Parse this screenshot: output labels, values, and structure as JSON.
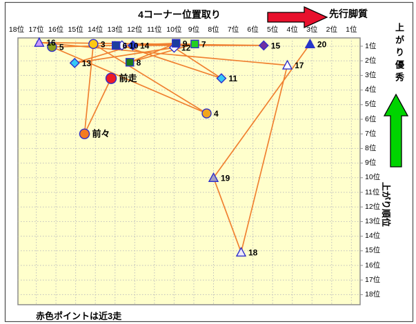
{
  "annotations": {
    "pace_arrow_label": "先行脚質",
    "agari_good_label": "上がり優秀",
    "agari_rank_label": "上がり順位",
    "note": "赤色ポイントは近3走"
  },
  "colors": {
    "plot_background": "#ffffcc",
    "plot_border": "#8a8a8a",
    "gridline": "#bdbdbd",
    "connector_line": "#f08030",
    "marker_border_blue": "#2d2dcb",
    "red_arrow": "#e8112d",
    "green_arrow": "#00d400",
    "frame_border": "#4a4a4a"
  },
  "chart_data": {
    "type": "scatter",
    "title": "4コーナー位置取り",
    "x_axis": {
      "labels": [
        "18位",
        "17位",
        "16位",
        "15位",
        "14位",
        "13位",
        "12位",
        "11位",
        "10位",
        "9位",
        "8位",
        "7位",
        "6位",
        "5位",
        "4位",
        "3位",
        "2位",
        "1位"
      ],
      "range": [
        18,
        1
      ],
      "meaning": "4コーナー位置取り"
    },
    "y_axis": {
      "labels": [
        "1位",
        "2位",
        "3位",
        "4位",
        "5位",
        "6位",
        "7位",
        "8位",
        "9位",
        "10位",
        "11位",
        "12位",
        "13位",
        "14位",
        "15位",
        "16位",
        "17位",
        "18位"
      ],
      "range": [
        1,
        18
      ],
      "meaning": "上がり順位"
    },
    "grid": true,
    "points": [
      {
        "label": "前走",
        "x": 13.2,
        "y": 3.2,
        "shape": "circle",
        "fill": "#ee1c25",
        "size": 15
      },
      {
        "label": "前々",
        "x": 14.55,
        "y": 7.0,
        "shape": "circle",
        "fill": "#f47b20",
        "size": 14
      },
      {
        "label": "3",
        "x": 14.1,
        "y": 0.85,
        "shape": "circle",
        "fill": "#ffc913",
        "size": 13
      },
      {
        "label": "4",
        "x": 8.35,
        "y": 5.6,
        "shape": "circle",
        "fill": "#f2a51c",
        "size": 13
      },
      {
        "label": "5",
        "x": 16.2,
        "y": 1.05,
        "shape": "circle",
        "fill": "#8ca11c",
        "size": 13
      },
      {
        "label": "10",
        "x": 12.65,
        "y": 0.95,
        "shape": "diamond",
        "fill": "#ffffff",
        "size": 13
      },
      {
        "label": "6",
        "x": 12.95,
        "y": 0.95,
        "shape": "square",
        "fill": "#1c3e9c",
        "size": 11
      },
      {
        "label": "14",
        "x": 12.1,
        "y": 0.95,
        "shape": "diamond",
        "fill": "#2946cc",
        "size": 13
      },
      {
        "label": "12",
        "x": 10.0,
        "y": 1.1,
        "shape": "diamond",
        "fill": "#ffffff",
        "size": 13
      },
      {
        "label": "9",
        "x": 9.9,
        "y": 0.8,
        "shape": "square",
        "fill": "#1c3e9c",
        "size": 11
      },
      {
        "label": "7",
        "x": 8.95,
        "y": 0.85,
        "shape": "square",
        "fill": "#21d021",
        "size": 11
      },
      {
        "label": "8",
        "x": 12.25,
        "y": 2.1,
        "shape": "square",
        "fill": "#1b7a1b",
        "size": 11
      },
      {
        "label": "11",
        "x": 7.6,
        "y": 3.2,
        "shape": "diamond",
        "fill": "#35c8f5",
        "size": 13
      },
      {
        "label": "13",
        "x": 15.05,
        "y": 2.15,
        "shape": "diamond",
        "fill": "#35c8f5",
        "size": 13
      },
      {
        "label": "15",
        "x": 5.45,
        "y": 0.95,
        "shape": "diamond",
        "fill": "#7030a0",
        "size": 13
      },
      {
        "label": "16",
        "x": 16.85,
        "y": 0.75,
        "shape": "triangle",
        "fill": "#cc99ff",
        "size": 13
      },
      {
        "label": "17",
        "x": 4.25,
        "y": 2.3,
        "shape": "triangle",
        "fill": "#ffffff",
        "size": 13
      },
      {
        "label": "18",
        "x": 6.6,
        "y": 15.1,
        "shape": "triangle",
        "fill": "#ece8fa",
        "size": 13
      },
      {
        "label": "19",
        "x": 8.0,
        "y": 10.0,
        "shape": "triangle",
        "fill": "#a49fc0",
        "size": 13
      },
      {
        "label": "20",
        "x": 3.1,
        "y": 0.85,
        "shape": "triangle",
        "fill": "#2238c8",
        "size": 13
      }
    ],
    "connection_order": [
      "前走",
      "前々",
      "3",
      "4",
      "5",
      "6",
      "7",
      "8",
      "9",
      "10",
      "11",
      "12",
      "13",
      "14",
      "15",
      "16",
      "17",
      "18",
      "19",
      "20"
    ],
    "legend_note": "赤色ポイントは近3走"
  }
}
